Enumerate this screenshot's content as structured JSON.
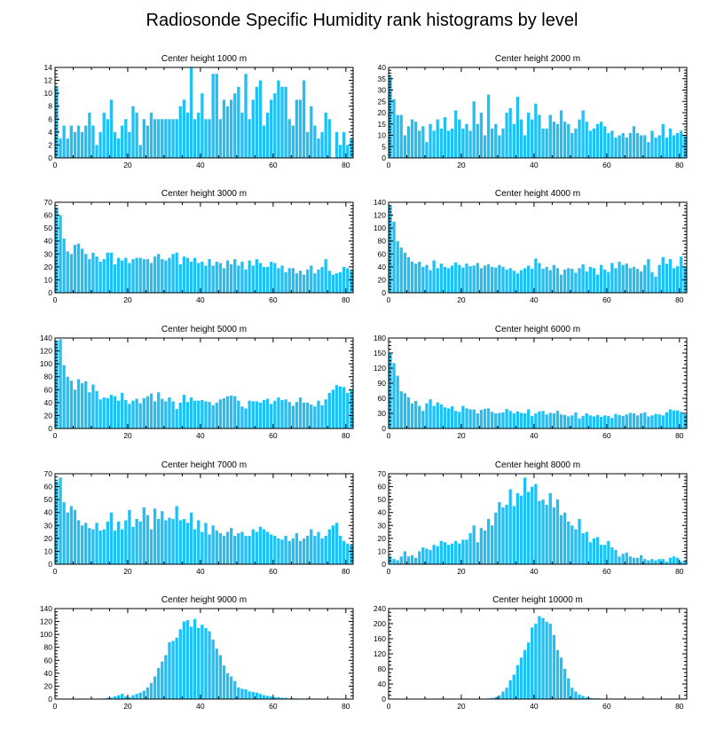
{
  "title": "Radiosonde Specific Humidity rank histograms by level",
  "colors": {
    "bar": "#1ec0f5",
    "axis": "#000000",
    "background": "#ffffff"
  },
  "chart_data": [
    {
      "type": "bar",
      "title": "Center height 1000 m",
      "xlim": [
        0,
        82
      ],
      "ylim": [
        0,
        14
      ],
      "xticks": [
        0,
        20,
        40,
        60,
        80
      ],
      "yticks": [
        0,
        2,
        4,
        6,
        8,
        10,
        12,
        14
      ],
      "values": [
        11,
        3,
        5,
        3,
        5,
        4,
        5,
        4,
        5,
        7,
        5,
        2,
        4,
        7,
        6,
        9,
        4,
        3,
        5,
        6,
        4,
        8,
        7,
        2,
        6,
        5,
        7,
        6,
        6,
        6,
        6,
        6,
        6,
        6,
        8,
        9,
        7,
        14,
        6,
        7,
        10,
        6,
        6,
        13,
        13,
        6,
        9,
        8,
        9,
        10,
        11,
        7,
        13,
        6,
        9,
        11,
        12,
        5,
        7,
        9,
        10,
        12,
        11,
        11,
        6,
        5,
        9,
        9,
        12,
        4,
        8,
        5,
        3,
        4,
        7,
        6,
        0,
        4,
        2,
        4,
        2,
        3
      ]
    },
    {
      "type": "bar",
      "title": "Center height 2000 m",
      "xlim": [
        0,
        82
      ],
      "ylim": [
        0,
        40
      ],
      "xticks": [
        0,
        20,
        40,
        60,
        80
      ],
      "yticks": [
        0,
        5,
        10,
        15,
        20,
        25,
        30,
        35,
        40
      ],
      "values": [
        36,
        26,
        19,
        19,
        10,
        14,
        17,
        16,
        12,
        14,
        7,
        15,
        12,
        17,
        13,
        18,
        12,
        13,
        21,
        17,
        13,
        15,
        12,
        25,
        15,
        20,
        10,
        28,
        13,
        15,
        10,
        13,
        20,
        22,
        15,
        27,
        17,
        10,
        20,
        17,
        24,
        19,
        13,
        13,
        19,
        16,
        15,
        21,
        16,
        15,
        11,
        13,
        17,
        21,
        16,
        12,
        13,
        15,
        16,
        14,
        11,
        12,
        9,
        10,
        11,
        9,
        11,
        14,
        11,
        10,
        10,
        7,
        12,
        9,
        10,
        15,
        9,
        13,
        10,
        11,
        12,
        10
      ]
    },
    {
      "type": "bar",
      "title": "Center height 3000 m",
      "xlim": [
        0,
        82
      ],
      "ylim": [
        0,
        70
      ],
      "xticks": [
        0,
        20,
        40,
        60,
        80
      ],
      "yticks": [
        0,
        10,
        20,
        30,
        40,
        50,
        60,
        70
      ],
      "values": [
        66,
        60,
        42,
        32,
        30,
        37,
        38,
        34,
        30,
        26,
        31,
        28,
        24,
        26,
        31,
        31,
        22,
        27,
        25,
        27,
        23,
        26,
        27,
        27,
        26,
        26,
        23,
        28,
        30,
        26,
        25,
        27,
        30,
        31,
        22,
        28,
        27,
        24,
        27,
        23,
        24,
        21,
        26,
        21,
        24,
        23,
        19,
        25,
        22,
        26,
        21,
        24,
        18,
        25,
        21,
        26,
        23,
        20,
        20,
        24,
        23,
        19,
        21,
        16,
        19,
        19,
        15,
        17,
        14,
        18,
        21,
        15,
        18,
        20,
        26,
        17,
        14,
        15,
        16,
        20,
        19,
        17
      ]
    },
    {
      "type": "bar",
      "title": "Center height 4000 m",
      "xlim": [
        0,
        82
      ],
      "ylim": [
        0,
        140
      ],
      "xticks": [
        0,
        20,
        40,
        60,
        80
      ],
      "yticks": [
        0,
        20,
        40,
        60,
        80,
        100,
        120,
        140
      ],
      "values": [
        135,
        110,
        80,
        70,
        62,
        55,
        48,
        45,
        48,
        40,
        43,
        35,
        50,
        38,
        45,
        40,
        38,
        42,
        47,
        43,
        39,
        45,
        41,
        42,
        46,
        38,
        42,
        44,
        40,
        39,
        43,
        40,
        36,
        38,
        34,
        30,
        35,
        38,
        42,
        37,
        53,
        46,
        37,
        40,
        35,
        43,
        38,
        28,
        36,
        38,
        37,
        31,
        38,
        44,
        33,
        40,
        38,
        28,
        43,
        36,
        32,
        46,
        38,
        48,
        43,
        45,
        38,
        40,
        37,
        33,
        43,
        52,
        32,
        25,
        43,
        55,
        45,
        52,
        38,
        41,
        56,
        40
      ]
    },
    {
      "type": "bar",
      "title": "Center height 5000 m",
      "xlim": [
        0,
        82
      ],
      "ylim": [
        0,
        140
      ],
      "xticks": [
        0,
        20,
        40,
        60,
        80
      ],
      "yticks": [
        0,
        20,
        40,
        60,
        80,
        100,
        120,
        140
      ],
      "values": [
        135,
        138,
        98,
        80,
        74,
        60,
        76,
        70,
        73,
        56,
        68,
        58,
        45,
        48,
        47,
        52,
        50,
        43,
        55,
        44,
        38,
        43,
        46,
        39,
        47,
        50,
        54,
        42,
        56,
        46,
        42,
        48,
        42,
        30,
        40,
        52,
        41,
        48,
        43,
        43,
        44,
        42,
        41,
        36,
        40,
        45,
        47,
        50,
        51,
        50,
        43,
        34,
        31,
        43,
        42,
        42,
        40,
        44,
        46,
        38,
        43,
        48,
        44,
        45,
        41,
        35,
        41,
        48,
        40,
        40,
        37,
        34,
        43,
        36,
        45,
        55,
        60,
        67,
        65,
        64,
        55,
        60
      ]
    },
    {
      "type": "bar",
      "title": "Center height 6000 m",
      "xlim": [
        0,
        82
      ],
      "ylim": [
        0,
        180
      ],
      "xticks": [
        0,
        20,
        40,
        60,
        80
      ],
      "yticks": [
        0,
        30,
        60,
        90,
        120,
        150,
        180
      ],
      "values": [
        150,
        130,
        105,
        74,
        70,
        62,
        50,
        55,
        45,
        35,
        50,
        58,
        45,
        52,
        48,
        42,
        40,
        44,
        35,
        33,
        45,
        40,
        38,
        38,
        30,
        37,
        39,
        40,
        33,
        30,
        31,
        32,
        39,
        35,
        30,
        34,
        31,
        30,
        38,
        25,
        30,
        34,
        35,
        28,
        31,
        30,
        35,
        28,
        27,
        24,
        26,
        32,
        20,
        25,
        30,
        26,
        24,
        27,
        23,
        26,
        25,
        21,
        29,
        27,
        25,
        28,
        31,
        30,
        26,
        30,
        32,
        24,
        26,
        29,
        28,
        26,
        32,
        38,
        36,
        36,
        33,
        28
      ]
    },
    {
      "type": "bar",
      "title": "Center height 7000 m",
      "xlim": [
        0,
        82
      ],
      "ylim": [
        0,
        70
      ],
      "xticks": [
        0,
        20,
        40,
        60,
        80
      ],
      "yticks": [
        0,
        10,
        20,
        30,
        40,
        50,
        60,
        70
      ],
      "values": [
        64,
        67,
        48,
        40,
        45,
        42,
        34,
        30,
        32,
        28,
        27,
        32,
        26,
        27,
        33,
        40,
        26,
        33,
        27,
        34,
        42,
        29,
        35,
        33,
        44,
        38,
        27,
        43,
        35,
        41,
        34,
        36,
        35,
        45,
        34,
        35,
        32,
        40,
        27,
        34,
        25,
        32,
        23,
        30,
        26,
        24,
        22,
        25,
        28,
        22,
        24,
        25,
        22,
        22,
        27,
        25,
        29,
        27,
        25,
        23,
        22,
        20,
        19,
        22,
        18,
        20,
        24,
        18,
        20,
        22,
        27,
        22,
        25,
        20,
        22,
        27,
        30,
        32,
        22,
        18,
        16,
        15
      ]
    },
    {
      "type": "bar",
      "title": "Center height 8000 m",
      "xlim": [
        0,
        82
      ],
      "ylim": [
        0,
        70
      ],
      "xticks": [
        0,
        20,
        40,
        60,
        80
      ],
      "yticks": [
        0,
        10,
        20,
        30,
        40,
        50,
        60,
        70
      ],
      "values": [
        6,
        4,
        3,
        6,
        10,
        6,
        7,
        5,
        10,
        13,
        12,
        11,
        15,
        14,
        18,
        17,
        15,
        16,
        18,
        16,
        19,
        19,
        24,
        30,
        17,
        28,
        26,
        35,
        30,
        40,
        48,
        44,
        46,
        58,
        45,
        55,
        53,
        67,
        56,
        60,
        62,
        49,
        50,
        46,
        55,
        44,
        50,
        38,
        40,
        33,
        30,
        27,
        35,
        24,
        25,
        17,
        20,
        21,
        15,
        15,
        18,
        13,
        11,
        6,
        8,
        9,
        6,
        5,
        5,
        7,
        4,
        3,
        4,
        3,
        4,
        4,
        2,
        5,
        6,
        5,
        2,
        3
      ]
    },
    {
      "type": "bar",
      "title": "Center height 9000 m",
      "xlim": [
        0,
        82
      ],
      "ylim": [
        0,
        140
      ],
      "xticks": [
        0,
        20,
        40,
        60,
        80
      ],
      "yticks": [
        0,
        20,
        40,
        60,
        80,
        100,
        120,
        140
      ],
      "values": [
        0,
        0,
        0,
        0,
        0,
        0,
        0,
        0,
        0,
        0,
        0,
        0,
        0,
        1,
        2,
        2,
        4,
        6,
        8,
        4,
        3,
        6,
        8,
        10,
        13,
        18,
        25,
        35,
        48,
        58,
        68,
        88,
        90,
        95,
        108,
        120,
        122,
        112,
        124,
        110,
        115,
        110,
        105,
        92,
        78,
        68,
        52,
        40,
        35,
        28,
        18,
        16,
        15,
        12,
        11,
        10,
        8,
        6,
        5,
        4,
        3,
        3,
        2,
        2,
        1,
        1,
        1,
        0,
        0,
        1,
        0,
        0,
        0,
        0,
        0,
        0,
        0,
        0,
        0,
        0,
        0,
        0
      ]
    },
    {
      "type": "bar",
      "title": "Center height 10000 m",
      "xlim": [
        0,
        82
      ],
      "ylim": [
        0,
        240
      ],
      "xticks": [
        0,
        20,
        40,
        60,
        80
      ],
      "yticks": [
        0,
        40,
        80,
        120,
        160,
        200,
        240
      ],
      "values": [
        0,
        0,
        0,
        0,
        0,
        0,
        0,
        0,
        0,
        0,
        0,
        0,
        0,
        0,
        0,
        0,
        0,
        0,
        0,
        0,
        0,
        0,
        0,
        0,
        0,
        0,
        1,
        2,
        3,
        5,
        10,
        20,
        30,
        50,
        65,
        90,
        110,
        130,
        150,
        190,
        200,
        220,
        215,
        205,
        200,
        170,
        130,
        110,
        80,
        55,
        30,
        20,
        12,
        8,
        5,
        3,
        2,
        2,
        1,
        1,
        1,
        0,
        0,
        0,
        0,
        0,
        0,
        0,
        0,
        0,
        0,
        0,
        0,
        0,
        0,
        0,
        0,
        0,
        0,
        0,
        0,
        0
      ]
    }
  ]
}
